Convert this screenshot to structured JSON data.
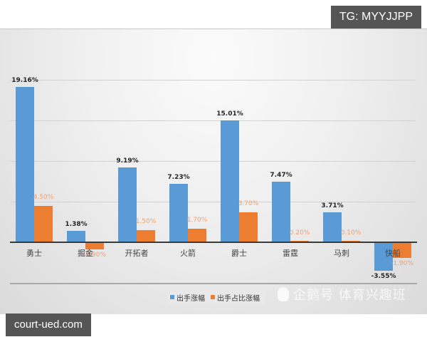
{
  "badges": {
    "top_right": "TG: MYYJJPP",
    "bottom_left": "court-ued.com"
  },
  "watermark": {
    "icon": "penguin-icon",
    "text": "企鹅号 体育兴趣班"
  },
  "colors": {
    "series1": "#5b9bd5",
    "series2": "#ed7d31",
    "series2_label": "#f0a070"
  },
  "chart_data": {
    "type": "bar",
    "title": "",
    "xlabel": "",
    "ylabel": "",
    "ylim": [
      -5,
      20
    ],
    "grid": true,
    "legend_position": "bottom",
    "categories": [
      "勇士",
      "掘金",
      "开拓者",
      "火箭",
      "爵士",
      "雷霆",
      "马刺",
      "快船"
    ],
    "series": [
      {
        "name": "出手涨幅",
        "values": [
          19.16,
          1.38,
          9.19,
          7.23,
          15.01,
          7.47,
          3.71,
          -3.55
        ],
        "labels": [
          "19.16%",
          "1.38%",
          "9.19%",
          "7.23%",
          "15.01%",
          "7.47%",
          "3.71%",
          "-3.55%"
        ]
      },
      {
        "name": "出手占比涨幅",
        "values": [
          4.5,
          -0.9,
          1.5,
          1.7,
          3.7,
          0.2,
          0.1,
          -1.9
        ],
        "labels": [
          "4.50%",
          "-0.90%",
          "1.50%",
          "1.70%",
          "3.70%",
          "0.20%",
          "0.10%",
          "-1.90%"
        ]
      }
    ]
  },
  "legend": {
    "items": [
      {
        "label": "出手涨幅"
      },
      {
        "label": "出手占比涨幅"
      }
    ]
  }
}
